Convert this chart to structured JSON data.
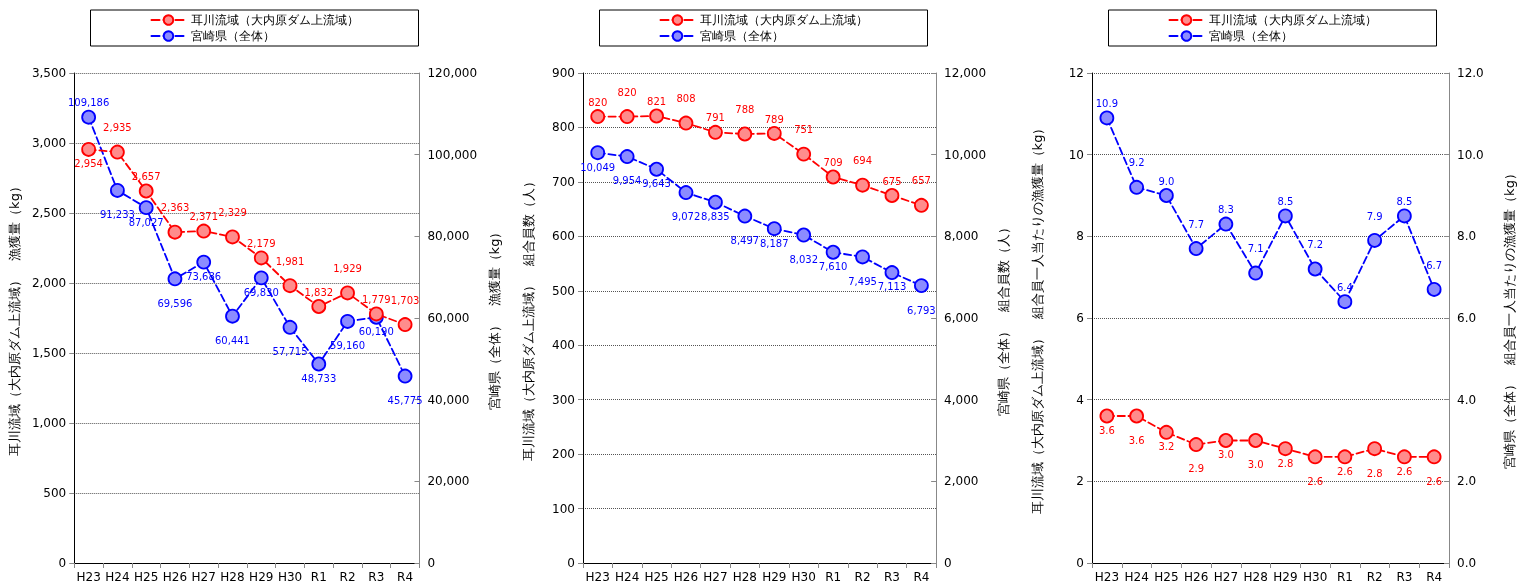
{
  "chart_data": [
    {
      "type": "line",
      "categories": [
        "H23",
        "H24",
        "H25",
        "H26",
        "H27",
        "H28",
        "H29",
        "H30",
        "R1",
        "R2",
        "R3",
        "R4"
      ],
      "ylabel": "耳川流域（大内原ダム上流域）　漁獲量（kg）",
      "y2label": "宮崎県（全体）　漁獲量（kg）",
      "ylim": [
        0,
        3500
      ],
      "yticks": [
        0,
        500,
        {
          "value": 1000,
          "label": "1,000"
        },
        {
          "value": 1500,
          "label": "1,500"
        },
        {
          "value": 2000,
          "label": "2,000"
        },
        {
          "value": 2500,
          "label": "2,500"
        },
        {
          "value": 3000,
          "label": "3,000"
        },
        {
          "value": 3500,
          "label": "3,500"
        }
      ],
      "y2lim": [
        0,
        120000
      ],
      "y2ticks": [
        0,
        {
          "value": 20000,
          "label": "20,000"
        },
        {
          "value": 40000,
          "label": "40,000"
        },
        {
          "value": 60000,
          "label": "60,000"
        },
        {
          "value": 80000,
          "label": "80,000"
        },
        {
          "value": 100000,
          "label": "100,000"
        },
        {
          "value": 120000,
          "label": "120,000"
        }
      ],
      "grid": "y",
      "legend": "top",
      "marker": "circle",
      "line_style": "dashed",
      "series": [
        {
          "name": "耳川流域（大内原ダム上流域）",
          "color": "#ff0000",
          "values": [
            2954,
            2935,
            2657,
            2363,
            2371,
            2329,
            2179,
            1981,
            1832,
            1929,
            1779,
            1703
          ],
          "value_labels": [
            "2,954",
            "2,935",
            "2,657",
            "2,363",
            "2,371",
            "2,329",
            "2,179",
            "1,981",
            "1,832",
            "1,929",
            "1,779",
            "1,703"
          ]
        },
        {
          "name": "宮崎県（全体）",
          "color": "#0000ff",
          "axis": "y2",
          "values": [
            109186,
            91233,
            87027,
            69596,
            73686,
            60441,
            69830,
            57715,
            48733,
            59160,
            60190,
            45775
          ],
          "value_labels": [
            "109,186",
            "91,233",
            "87,027",
            "69,596",
            "73,686",
            "60,441",
            "69,830",
            "57,715",
            "48,733",
            "59,160",
            "60,190",
            "45,775"
          ]
        }
      ]
    },
    {
      "type": "line",
      "categories": [
        "H23",
        "H24",
        "H25",
        "H26",
        "H27",
        "H28",
        "H29",
        "H30",
        "R1",
        "R2",
        "R3",
        "R4"
      ],
      "ylabel": "耳川流域（大内原ダム上流域）　組合員数（人）",
      "y2label": "宮崎県（全体）　組合員数（人）",
      "ylim": [
        0,
        900
      ],
      "yticks": [
        0,
        100,
        200,
        300,
        400,
        500,
        600,
        700,
        800,
        900
      ],
      "y2lim": [
        0,
        12000
      ],
      "y2ticks": [
        0,
        {
          "value": 2000,
          "label": "2,000"
        },
        {
          "value": 4000,
          "label": "4,000"
        },
        {
          "value": 6000,
          "label": "6,000"
        },
        {
          "value": 8000,
          "label": "8,000"
        },
        {
          "value": 10000,
          "label": "10,000"
        },
        {
          "value": 12000,
          "label": "12,000"
        }
      ],
      "grid": "y",
      "legend": "top",
      "marker": "circle",
      "line_style": "dashed",
      "series": [
        {
          "name": "耳川流域（大内原ダム上流域）",
          "color": "#ff0000",
          "values": [
            820,
            820,
            821,
            808,
            791,
            788,
            789,
            751,
            709,
            694,
            675,
            657
          ],
          "value_labels": [
            "820",
            "820",
            "821",
            "808",
            "791",
            "788",
            "789",
            "751",
            "709",
            "694",
            "675",
            "657"
          ]
        },
        {
          "name": "宮崎県（全体）",
          "color": "#0000ff",
          "axis": "y2",
          "values": [
            10049,
            9954,
            9643,
            9072,
            8835,
            8497,
            8187,
            8032,
            7610,
            7495,
            7113,
            6793
          ],
          "value_labels": [
            "10,049",
            "9,954",
            "9,643",
            "9,072",
            "8,835",
            "8,497",
            "8,187",
            "8,032",
            "7,610",
            "7,495",
            "7,113",
            "6,793"
          ]
        }
      ]
    },
    {
      "type": "line",
      "categories": [
        "H23",
        "H24",
        "H25",
        "H26",
        "H27",
        "H28",
        "H29",
        "H30",
        "R1",
        "R2",
        "R3",
        "R4"
      ],
      "ylabel": "耳川流域（大内原ダム上流域）　組合員一人当たりの漁獲量（kg）",
      "y2label": "宮崎県（全体）　組合員一人当たりの漁獲量（kg）",
      "ylim": [
        0,
        12
      ],
      "yticks": [
        0,
        2,
        4,
        6,
        8,
        10,
        12
      ],
      "y2lim": [
        0,
        12
      ],
      "y2ticks": [
        {
          "value": 0,
          "label": "0.0"
        },
        {
          "value": 2,
          "label": "2.0"
        },
        {
          "value": 4,
          "label": "4.0"
        },
        {
          "value": 6,
          "label": "6.0"
        },
        {
          "value": 8,
          "label": "8.0"
        },
        {
          "value": 10,
          "label": "10.0"
        },
        {
          "value": 12,
          "label": "12.0"
        }
      ],
      "grid": "y",
      "legend": "top",
      "marker": "circle",
      "line_style": "dashed",
      "series": [
        {
          "name": "耳川流域（大内原ダム上流域）",
          "color": "#ff0000",
          "values": [
            3.6,
            3.6,
            3.2,
            2.9,
            3.0,
            3.0,
            2.8,
            2.6,
            2.6,
            2.8,
            2.6,
            2.6
          ],
          "value_labels": [
            "3.6",
            "3.6",
            "3.2",
            "2.9",
            "3.0",
            "3.0",
            "2.8",
            "2.6",
            "2.6",
            "2.8",
            "2.6",
            "2.6"
          ]
        },
        {
          "name": "宮崎県（全体）",
          "color": "#0000ff",
          "axis": "y2",
          "values": [
            10.9,
            9.2,
            9.0,
            7.7,
            8.3,
            7.1,
            8.5,
            7.2,
            6.4,
            7.9,
            8.5,
            6.7
          ],
          "value_labels": [
            "10.9",
            "9.2",
            "9.0",
            "7.7",
            "8.3",
            "7.1",
            "8.5",
            "7.2",
            "6.4",
            "7.9",
            "8.5",
            "6.7"
          ]
        }
      ]
    }
  ]
}
